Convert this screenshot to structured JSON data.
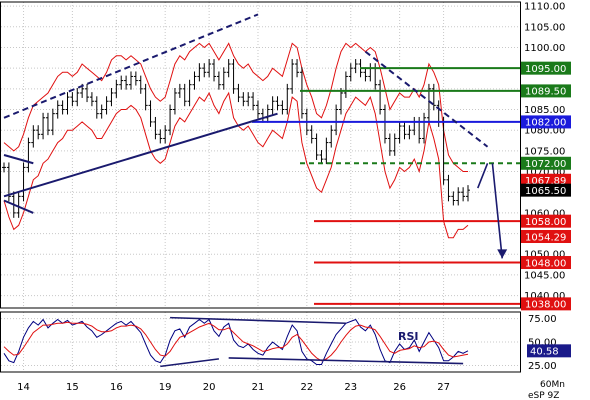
{
  "chart_data": [
    {
      "type": "candlestick",
      "instrument_label": "eSP 9Z",
      "timeframe_label": "60Mn",
      "x_tick_labels": [
        "14",
        "15",
        "16",
        "19",
        "20",
        "21",
        "22",
        "23",
        "26",
        "27"
      ],
      "y_tick_labels": [
        "1110.00",
        "1105.00",
        "1100.00",
        "1095.00",
        "1090.00",
        "1085.00",
        "1080.00",
        "1075.00",
        "1070.00",
        "1065.00",
        "1060.00",
        "1055.00",
        "1050.00",
        "1045.00",
        "1040.00"
      ],
      "ylim": [
        1037,
        1111
      ],
      "grid": true,
      "last_price": 1065.5,
      "price_series": {
        "description": "approx hourly closes, 14th–27th",
        "close": [
          1071,
          1064,
          1060,
          1064,
          1071,
          1077,
          1080,
          1079,
          1083,
          1080,
          1084,
          1086,
          1085,
          1088,
          1087,
          1089,
          1090,
          1088,
          1087,
          1084,
          1085,
          1087,
          1089,
          1091,
          1092,
          1091,
          1093,
          1092,
          1090,
          1086,
          1082,
          1079,
          1078,
          1080,
          1085,
          1089,
          1090,
          1087,
          1091,
          1093,
          1095,
          1094,
          1096,
          1093,
          1091,
          1094,
          1096,
          1090,
          1088,
          1087,
          1088,
          1086,
          1084,
          1083,
          1085,
          1087,
          1086,
          1085,
          1090,
          1096,
          1094,
          1084,
          1080,
          1078,
          1074,
          1073,
          1077,
          1080,
          1085,
          1089,
          1093,
          1095,
          1096,
          1094,
          1093,
          1095,
          1091,
          1085,
          1078,
          1075,
          1078,
          1081,
          1079,
          1080,
          1082,
          1078,
          1083,
          1090,
          1086,
          1082,
          1068,
          1064,
          1063,
          1065,
          1064,
          1065.5
        ]
      },
      "bollinger_bands": {
        "upper": [
          1077,
          1076,
          1075,
          1076,
          1079,
          1083,
          1086,
          1087,
          1088,
          1089,
          1091,
          1093,
          1094,
          1094,
          1093,
          1094,
          1096,
          1095,
          1094,
          1093,
          1092,
          1094,
          1097,
          1098,
          1098,
          1097,
          1098,
          1097,
          1096,
          1093,
          1090,
          1088,
          1087,
          1088,
          1092,
          1096,
          1098,
          1097,
          1099,
          1100,
          1101,
          1100,
          1101,
          1099,
          1097,
          1099,
          1101,
          1098,
          1096,
          1095,
          1096,
          1094,
          1093,
          1092,
          1093,
          1095,
          1094,
          1093,
          1097,
          1101,
          1100,
          1095,
          1091,
          1088,
          1084,
          1083,
          1086,
          1090,
          1095,
          1099,
          1101,
          1100,
          1101,
          1100,
          1099,
          1100,
          1099,
          1095,
          1090,
          1085,
          1087,
          1089,
          1088,
          1088,
          1090,
          1088,
          1091,
          1096,
          1094,
          1091,
          1080,
          1074,
          1072,
          1071,
          1070,
          1070
        ],
        "lower": [
          1063,
          1059,
          1056,
          1057,
          1060,
          1064,
          1068,
          1069,
          1072,
          1073,
          1075,
          1077,
          1078,
          1080,
          1080,
          1081,
          1082,
          1081,
          1080,
          1078,
          1078,
          1080,
          1082,
          1084,
          1085,
          1085,
          1086,
          1085,
          1083,
          1079,
          1075,
          1073,
          1072,
          1073,
          1077,
          1081,
          1083,
          1082,
          1084,
          1086,
          1088,
          1087,
          1089,
          1086,
          1084,
          1087,
          1089,
          1083,
          1081,
          1080,
          1081,
          1079,
          1077,
          1076,
          1078,
          1080,
          1079,
          1078,
          1082,
          1088,
          1087,
          1077,
          1072,
          1069,
          1066,
          1065,
          1068,
          1071,
          1076,
          1080,
          1084,
          1086,
          1088,
          1087,
          1086,
          1088,
          1084,
          1077,
          1070,
          1066,
          1068,
          1071,
          1070,
          1071,
          1073,
          1070,
          1075,
          1082,
          1078,
          1073,
          1058,
          1054,
          1054,
          1056,
          1056,
          1057
        ]
      },
      "horizontal_levels": [
        {
          "value": 1095.0,
          "label": "1095.00",
          "color": "#1a7a1a",
          "style": "solid"
        },
        {
          "value": 1089.5,
          "label": "1089.50",
          "color": "#1a7a1a",
          "style": "solid"
        },
        {
          "value": 1082.0,
          "label": "1082.00",
          "color": "#1a1adc",
          "style": "solid"
        },
        {
          "value": 1072.0,
          "label": "1072.00",
          "color": "#1a7a1a",
          "style": "dashed"
        },
        {
          "value": 1067.89,
          "label": "1067.89",
          "color": "#e01010",
          "style": "marker"
        },
        {
          "value": 1058.0,
          "label": "1058.00",
          "color": "#e01010",
          "style": "solid"
        },
        {
          "value": 1054.29,
          "label": "1054.29",
          "color": "#e01010",
          "style": "marker"
        },
        {
          "value": 1048.0,
          "label": "1048.00",
          "color": "#e01010",
          "style": "solid"
        },
        {
          "value": 1038.0,
          "label": "1038.00",
          "color": "#e01010",
          "style": "solid"
        }
      ],
      "last_price_label": "1065.50",
      "trendlines": [
        {
          "from": [
            0,
            1083
          ],
          "to": [
            52,
            1108
          ],
          "style": "dashed",
          "color": "#1a1a6e"
        },
        {
          "from": [
            0,
            1064
          ],
          "to": [
            56,
            1084
          ],
          "style": "solid",
          "color": "#1a1a6e"
        },
        {
          "from": [
            74,
            1099
          ],
          "to": [
            99,
            1076
          ],
          "style": "dashed",
          "color": "#1a1a6e"
        },
        {
          "from": [
            0,
            1063
          ],
          "to": [
            6,
            1060
          ],
          "style": "solid",
          "color": "#1a1a6e"
        },
        {
          "from": [
            0,
            1074
          ],
          "to": [
            6,
            1072
          ],
          "style": "solid",
          "color": "#1a1a6e"
        }
      ],
      "projection_arrows": [
        {
          "from": [
            97,
            1066
          ],
          "to": [
            99,
            1072
          ],
          "color": "#1a1a6e"
        },
        {
          "from": [
            100,
            1072
          ],
          "to": [
            102,
            1049
          ],
          "color": "#1a1a6e",
          "arrowhead": true
        }
      ]
    },
    {
      "type": "line",
      "title": "RSI",
      "y_tick_labels": [
        "75.00",
        "50.00",
        "25.00"
      ],
      "ylim": [
        18,
        82
      ],
      "last_value_label": "40.58",
      "series": [
        {
          "color": "#000080",
          "values": [
            38,
            30,
            28,
            40,
            55,
            65,
            72,
            68,
            74,
            65,
            70,
            74,
            70,
            73,
            68,
            70,
            72,
            66,
            62,
            55,
            58,
            62,
            66,
            70,
            72,
            68,
            72,
            66,
            60,
            48,
            36,
            30,
            28,
            36,
            52,
            62,
            64,
            55,
            66,
            70,
            74,
            70,
            74,
            62,
            56,
            66,
            70,
            52,
            46,
            44,
            48,
            42,
            38,
            36,
            44,
            50,
            46,
            42,
            56,
            68,
            62,
            40,
            32,
            30,
            26,
            26,
            38,
            48,
            58,
            64,
            70,
            72,
            74,
            66,
            62,
            68,
            58,
            42,
            30,
            28,
            40,
            48,
            42,
            44,
            52,
            40,
            50,
            60,
            52,
            44,
            30,
            30,
            34,
            40,
            38,
            40.58
          ]
        },
        {
          "color": "#e01010",
          "values": [
            45,
            40,
            36,
            37,
            44,
            52,
            60,
            64,
            68,
            68,
            69,
            70,
            70,
            71,
            70,
            70,
            70,
            69,
            67,
            63,
            61,
            61,
            62,
            65,
            67,
            67,
            68,
            67,
            64,
            58,
            50,
            42,
            36,
            35,
            40,
            48,
            55,
            57,
            60,
            63,
            66,
            68,
            70,
            67,
            63,
            63,
            65,
            60,
            55,
            50,
            48,
            46,
            43,
            40,
            41,
            43,
            44,
            44,
            48,
            55,
            58,
            52,
            45,
            38,
            33,
            30,
            32,
            36,
            42,
            50,
            57,
            63,
            67,
            68,
            66,
            65,
            63,
            56,
            48,
            40,
            38,
            41,
            42,
            43,
            46,
            44,
            45,
            50,
            51,
            49,
            42,
            36,
            34,
            35,
            36,
            37
          ]
        }
      ],
      "trendlines": [
        {
          "from": [
            34,
            76
          ],
          "to": [
            70,
            70
          ],
          "color": "#1a1a6e"
        },
        {
          "from": [
            46,
            33
          ],
          "to": [
            94,
            27
          ],
          "color": "#1a1a6e"
        },
        {
          "from": [
            32,
            24
          ],
          "to": [
            44,
            32
          ],
          "color": "#1a1a6e"
        }
      ]
    }
  ]
}
